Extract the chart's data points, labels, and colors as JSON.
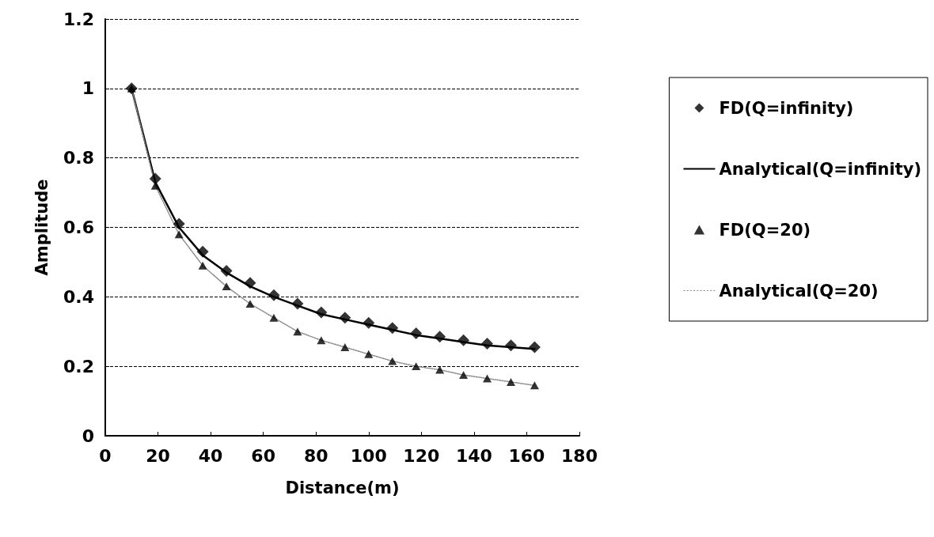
{
  "chart_data": {
    "type": "scatter",
    "xlabel": "Distance(m)",
    "ylabel": "Amplitude",
    "x": [
      10,
      19,
      28,
      37,
      46,
      55,
      64,
      73,
      82,
      91,
      100,
      109,
      118,
      127,
      136,
      145,
      154,
      163
    ],
    "series": [
      {
        "name": "FD(Q=infinity)",
        "marker": "diamond",
        "color": "#000000",
        "values": [
          1,
          0.74,
          0.61,
          0.53,
          0.475,
          0.44,
          0.405,
          0.38,
          0.355,
          0.34,
          0.325,
          0.31,
          0.295,
          0.285,
          0.275,
          0.265,
          0.26,
          0.255
        ]
      },
      {
        "name": "Analytical(Q=infinity)",
        "type": "line",
        "marker": "none",
        "line_style": "solid",
        "color": "#000000",
        "values": [
          1,
          0.73,
          0.6,
          0.52,
          0.47,
          0.43,
          0.4,
          0.375,
          0.35,
          0.335,
          0.32,
          0.305,
          0.29,
          0.28,
          0.27,
          0.26,
          0.255,
          0.25
        ]
      },
      {
        "name": "FD(Q=20)",
        "marker": "triangle",
        "color": "#000000",
        "values": [
          1,
          0.72,
          0.58,
          0.49,
          0.43,
          0.38,
          0.34,
          0.3,
          0.275,
          0.255,
          0.235,
          0.215,
          0.2,
          0.19,
          0.175,
          0.165,
          0.155,
          0.145
        ]
      },
      {
        "name": "Analytical(Q=20)",
        "type": "line",
        "marker": "none",
        "line_style": "dotted",
        "color": "#888888",
        "values": [
          1,
          0.72,
          0.58,
          0.49,
          0.43,
          0.38,
          0.34,
          0.3,
          0.275,
          0.255,
          0.235,
          0.215,
          0.2,
          0.19,
          0.175,
          0.165,
          0.155,
          0.145
        ]
      }
    ],
    "xlim": [
      0,
      180
    ],
    "xticks": [
      0,
      20,
      40,
      60,
      80,
      100,
      120,
      140,
      160,
      180
    ],
    "ylim": [
      0,
      1.2
    ],
    "yticks": [
      0,
      0.2,
      0.4,
      0.6,
      0.8,
      1,
      1.2
    ],
    "grid": "y",
    "legend": "right"
  }
}
